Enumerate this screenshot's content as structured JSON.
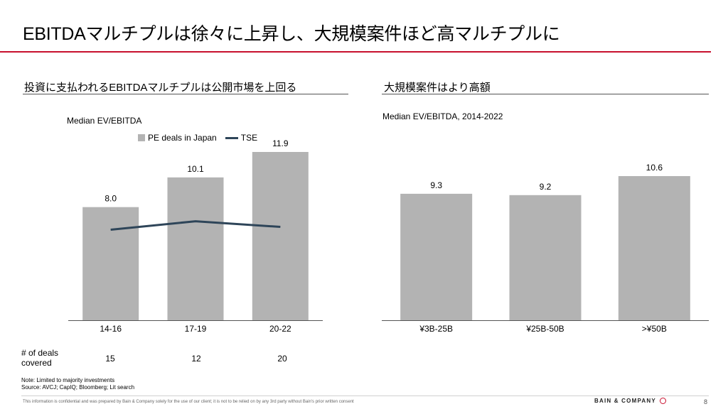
{
  "title": "EBITDAマルチプルは徐々に上昇し、大規模案件ほど高マルチプルに",
  "left_panel": {
    "subtitle": "投資に支払われるEBITDAマルチプルは公開市場を上回る",
    "caption": "Median EV/EBITDA"
  },
  "right_panel": {
    "subtitle": "大規模案件はより高額",
    "caption": "Median EV/EBITDA, 2014-2022"
  },
  "deals_row": {
    "label": "# of deals covered",
    "values": [
      "15",
      "12",
      "20"
    ]
  },
  "note": "Note: Limited to majority investments",
  "source": "Source: AVCJ; CapIQ; Bloomberg; Lit search",
  "disclaimer": "This information is confidential and was prepared by Bain & Company solely for the use of our client; it is not to be relied on by any 3rd party without Bain's prior written consent",
  "logo_text": "BAIN & COMPANY",
  "page_number": "8",
  "colors": {
    "accent": "#c8102e",
    "bar": "#b3b3b3",
    "line": "#2e4559"
  },
  "chart_data": [
    {
      "type": "bar",
      "title": "Median EV/EBITDA",
      "categories": [
        "14-16",
        "17-19",
        "20-22"
      ],
      "series": [
        {
          "name": "PE deals in Japan",
          "type": "bar",
          "values": [
            8.0,
            10.1,
            11.9
          ],
          "labels": [
            "8.0",
            "10.1",
            "11.9"
          ]
        },
        {
          "name": "TSE",
          "type": "line",
          "values": [
            6.4,
            7.0,
            6.6
          ]
        }
      ],
      "ylim": [
        0,
        11.9
      ],
      "legend": "top",
      "grid": false
    },
    {
      "type": "bar",
      "title": "Median EV/EBITDA, 2014-2022",
      "categories": [
        "¥3B-25B",
        "¥25B-50B",
        ">¥50B"
      ],
      "series": [
        {
          "name": "",
          "values": [
            9.3,
            9.2,
            10.6
          ],
          "labels": [
            "9.3",
            "9.2",
            "10.6"
          ]
        }
      ],
      "ylim": [
        0,
        10.6
      ],
      "grid": false
    }
  ]
}
